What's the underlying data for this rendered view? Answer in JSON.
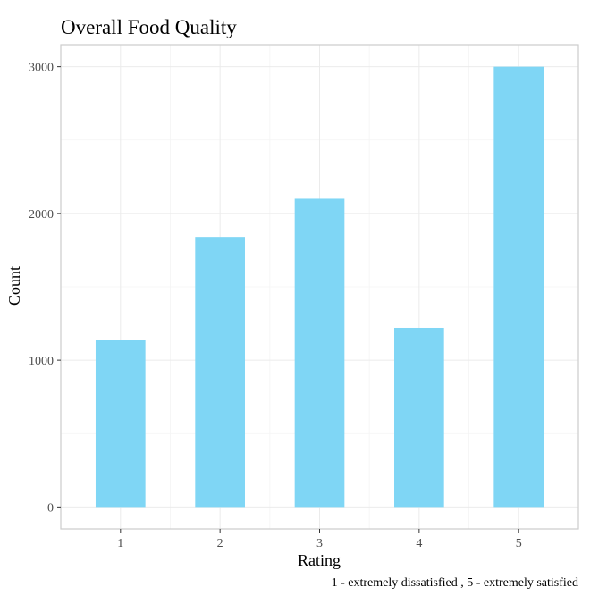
{
  "chart_data": {
    "type": "bar",
    "title": "Overall Food Quality",
    "xlabel": "Rating",
    "ylabel": "Count",
    "caption": "1 - extremely dissatisfied , 5 - extremely satisfied",
    "categories": [
      "1",
      "2",
      "3",
      "4",
      "5"
    ],
    "values": [
      1140,
      1840,
      2100,
      1220,
      3000
    ],
    "ylim": [
      -150,
      3150
    ],
    "yticks": [
      0,
      1000,
      2000,
      3000
    ],
    "ytick_labels": [
      "0",
      "1000",
      "2000",
      "3000"
    ],
    "grid": true,
    "legend": "none",
    "colors": {
      "bar": "#7fd6f5",
      "panel_border": "#cccccc",
      "grid_major": "#ebebeb",
      "grid_minor": "#f4f4f4",
      "tick_label": "#4d4d4d"
    }
  }
}
